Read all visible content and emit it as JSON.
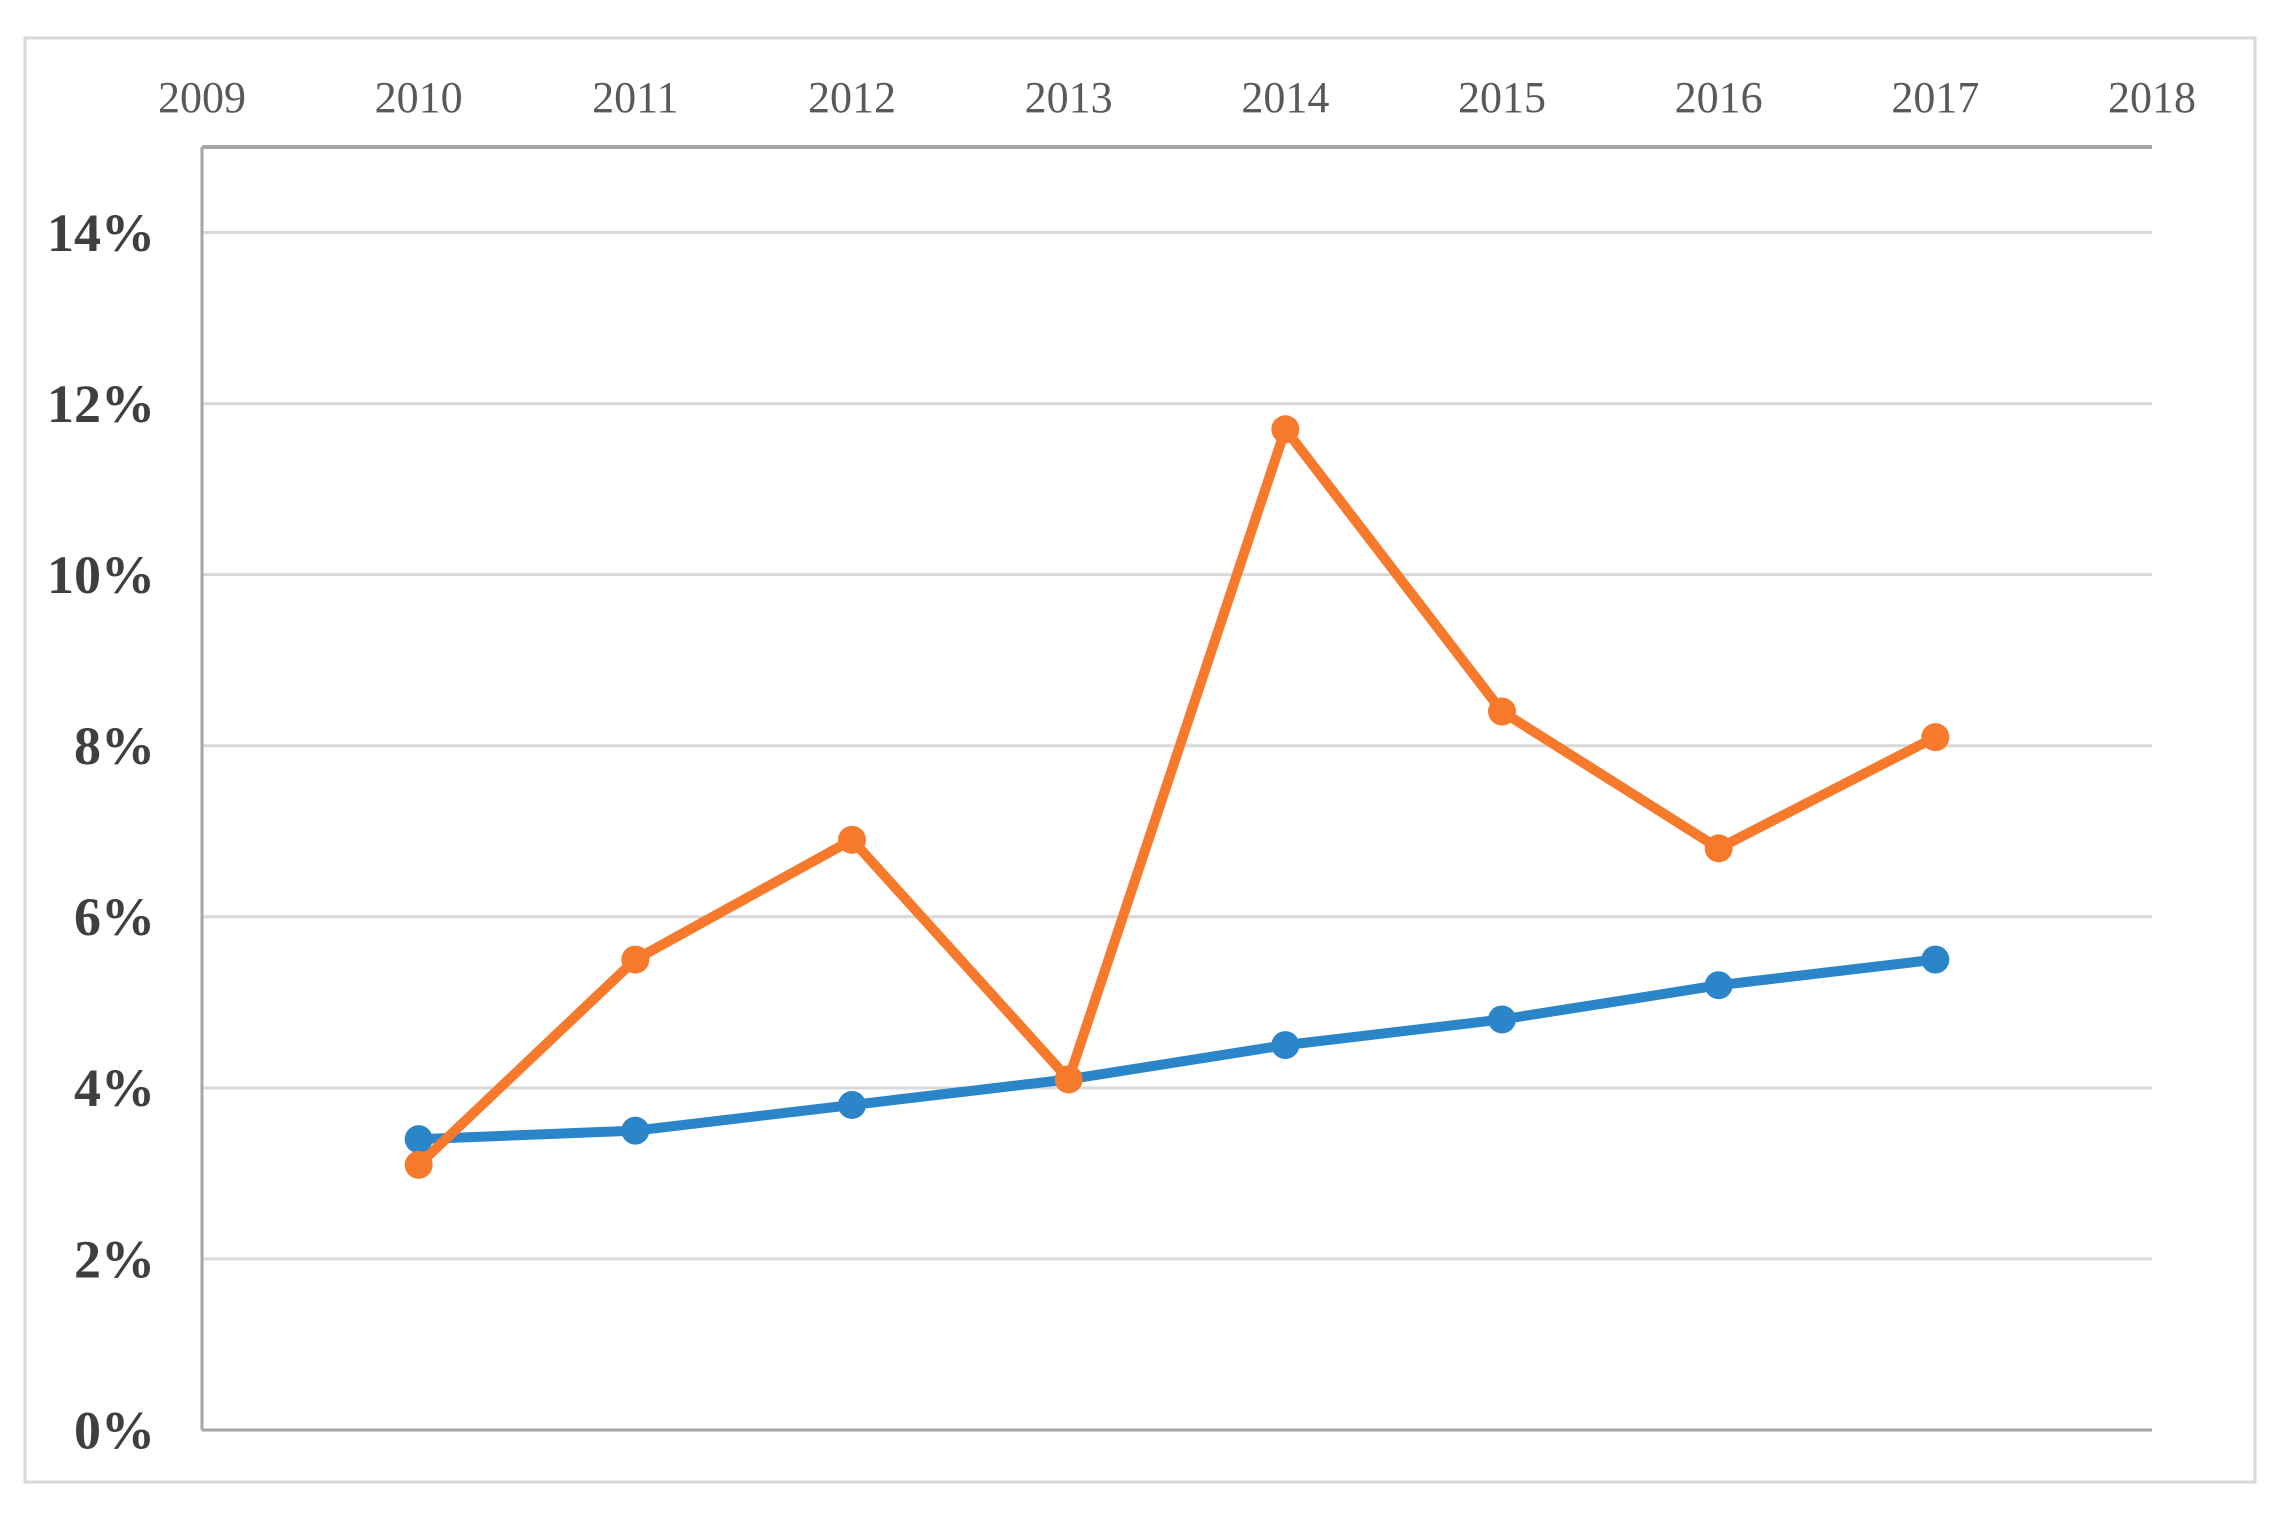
{
  "chart_data": {
    "type": "line",
    "title": "",
    "xlabel": "",
    "ylabel": "",
    "categories": [
      "2009",
      "2010",
      "2011",
      "2012",
      "2013",
      "2014",
      "2015",
      "2016",
      "2017",
      "2018"
    ],
    "series": [
      {
        "name": "blue-series",
        "color": "#2a86c9",
        "marker": "circle",
        "values": [
          null,
          3.4,
          3.5,
          3.8,
          4.1,
          4.5,
          4.8,
          5.2,
          5.5,
          null
        ]
      },
      {
        "name": "orange-series",
        "color": "#f7792b",
        "marker": "circle",
        "values": [
          null,
          3.1,
          5.5,
          6.9,
          4.1,
          11.7,
          8.4,
          6.8,
          8.1,
          null
        ]
      }
    ],
    "x_axis_position": "top",
    "y_tick_labels": [
      "0%",
      "2%",
      "4%",
      "6%",
      "8%",
      "10%",
      "12%",
      "14%"
    ],
    "y_major_unit_percent": 2,
    "ylim_percent": [
      0,
      15
    ],
    "grid": true,
    "legend_position": "none",
    "colors": {
      "background": "#ffffff",
      "frame_border": "#d9d9d9",
      "gridline": "#d9d9d9",
      "axis_line": "#a6a6a6",
      "x_label_text": "#595959",
      "y_label_text": "#3f3f3f"
    }
  }
}
